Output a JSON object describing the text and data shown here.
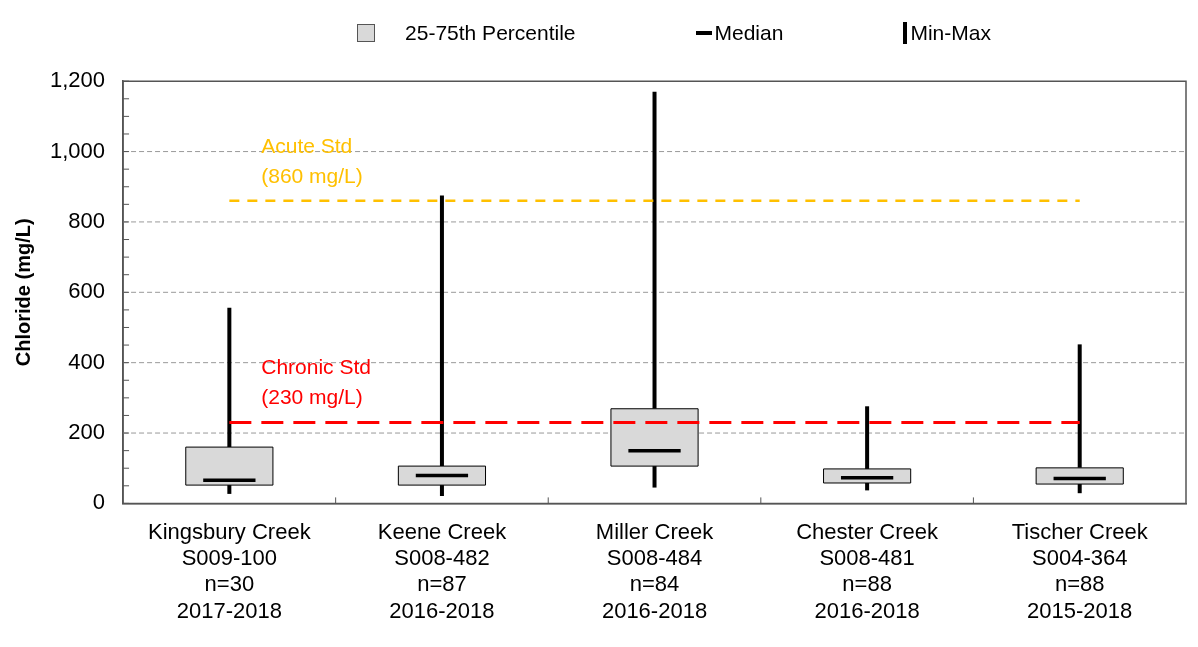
{
  "chart_data": {
    "type": "box",
    "ylabel": "Chloride (mg/L)",
    "categories": [
      "Kingsbury Creek\nS009-100\nn=30\n2017-2018",
      "Keene Creek\nS008-482\nn=87\n2016-2018",
      "Miller Creek\nS008-484\nn=84\n2016-2018",
      "Chester Creek\nS008-481\nn=88\n2016-2018",
      "Tischer Creek\nS004-364\nn=88\n2015-2018"
    ],
    "series": [
      {
        "name": "25-75th Percentile",
        "color": "#d9d9d9",
        "boxes": [
          {
            "low": 27,
            "q1": 52,
            "median": 66,
            "q3": 160,
            "high": 556
          },
          {
            "low": 21,
            "q1": 52,
            "median": 79,
            "q3": 106,
            "high": 875
          },
          {
            "low": 45,
            "q1": 106,
            "median": 150,
            "q3": 269,
            "high": 1170
          },
          {
            "low": 37,
            "q1": 58,
            "median": 73,
            "q3": 98,
            "high": 276
          },
          {
            "low": 29,
            "q1": 55,
            "median": 71,
            "q3": 101,
            "high": 452
          }
        ]
      }
    ],
    "annotations": [
      "Median",
      "Min-Max"
    ],
    "ref_lines": [
      {
        "axis": "y",
        "value": 860,
        "label": "Acute Std\n(860 mg/L)",
        "color": "#ffc000",
        "line_style": "dashed"
      },
      {
        "axis": "y",
        "value": 230,
        "label": "Chronic Std\n(230 mg/L)",
        "color": "#ff0000",
        "line_style": "dashed"
      }
    ],
    "ylim": [
      0,
      1200
    ],
    "yticks": [
      0,
      {
        "value": 50,
        "label": null
      },
      200,
      {
        "value": 100,
        "label": null
      },
      {
        "value": 150,
        "label": null
      },
      {
        "value": 250,
        "label": null
      },
      {
        "value": 300,
        "label": null
      },
      {
        "value": 350,
        "label": null
      },
      400,
      {
        "value": 450,
        "label": null
      },
      {
        "value": 500,
        "label": null
      },
      {
        "value": 550,
        "label": null
      },
      600,
      {
        "value": 650,
        "label": null
      },
      {
        "value": 700,
        "label": null
      },
      {
        "value": 750,
        "label": null
      },
      800,
      {
        "value": 850,
        "label": null
      },
      {
        "value": 900,
        "label": null
      },
      {
        "value": 950,
        "label": null
      },
      {
        "value": 1000,
        "label": "1,000"
      },
      {
        "value": 1050,
        "label": null
      },
      {
        "value": 1100,
        "label": null
      },
      {
        "value": 1150,
        "label": null
      },
      {
        "value": 1200,
        "label": "1,200"
      }
    ],
    "grid": "y",
    "legend": "top"
  }
}
